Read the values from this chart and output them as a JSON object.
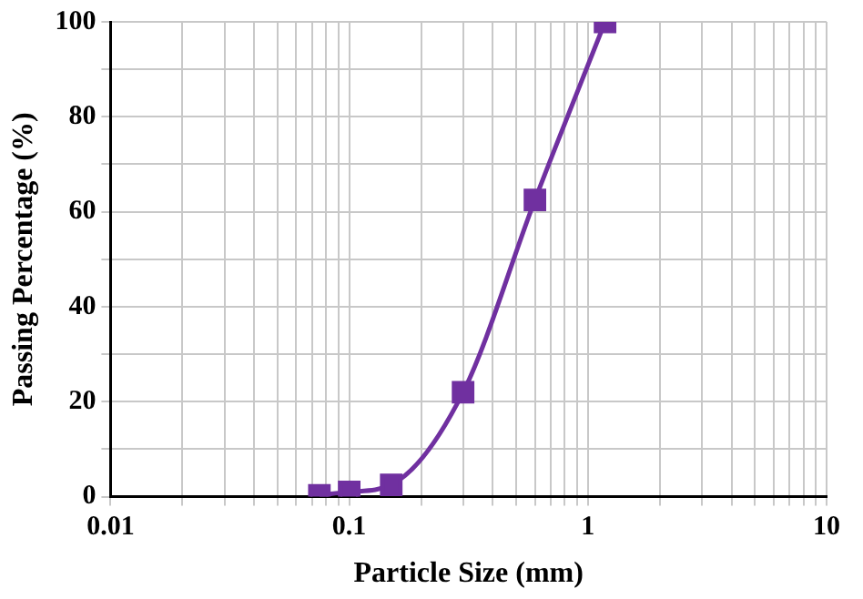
{
  "chart_data": {
    "type": "line",
    "xlabel": "Particle Size (mm)",
    "ylabel": "Passing Percentage (%)",
    "log": "x",
    "grid": true,
    "marker": "square",
    "line_style": "solid",
    "legend": false,
    "xlim": [
      0.01,
      10
    ],
    "ylim": [
      0,
      100
    ],
    "xticks": [
      0.01,
      {
        "value": 0.02,
        "label": null
      },
      {
        "value": 0.03,
        "label": null
      },
      {
        "value": 0.04,
        "label": null
      },
      {
        "value": 0.05,
        "label": null
      },
      {
        "value": 0.06,
        "label": null
      },
      {
        "value": 0.07,
        "label": null
      },
      {
        "value": 0.08,
        "label": null
      },
      {
        "value": 0.09,
        "label": null
      },
      0.1,
      {
        "value": 0.2,
        "label": null
      },
      {
        "value": 0.3,
        "label": null
      },
      {
        "value": 0.4,
        "label": null
      },
      {
        "value": 0.5,
        "label": null
      },
      {
        "value": 0.6,
        "label": null
      },
      {
        "value": 0.7,
        "label": null
      },
      {
        "value": 0.8,
        "label": null
      },
      {
        "value": 0.9,
        "label": null
      },
      1,
      {
        "value": 2,
        "label": null
      },
      {
        "value": 3,
        "label": null
      },
      {
        "value": 4,
        "label": null
      },
      {
        "value": 5,
        "label": null
      },
      {
        "value": 6,
        "label": null
      },
      {
        "value": 7,
        "label": null
      },
      {
        "value": 8,
        "label": null
      },
      {
        "value": 9,
        "label": null
      },
      10
    ],
    "yticks": [
      0,
      {
        "value": 10,
        "label": null
      },
      20,
      {
        "value": 30,
        "label": null
      },
      40,
      {
        "value": 50,
        "label": null
      },
      60,
      {
        "value": 70,
        "label": null
      },
      80,
      {
        "value": 90,
        "label": null
      },
      100
    ],
    "series": [
      {
        "color": "#7030a0",
        "x": [
          0.075,
          0.1,
          0.15,
          0.3,
          0.6,
          1.18
        ],
        "values": [
          0.3,
          1,
          2.5,
          22,
          62.5,
          100
        ]
      }
    ]
  }
}
